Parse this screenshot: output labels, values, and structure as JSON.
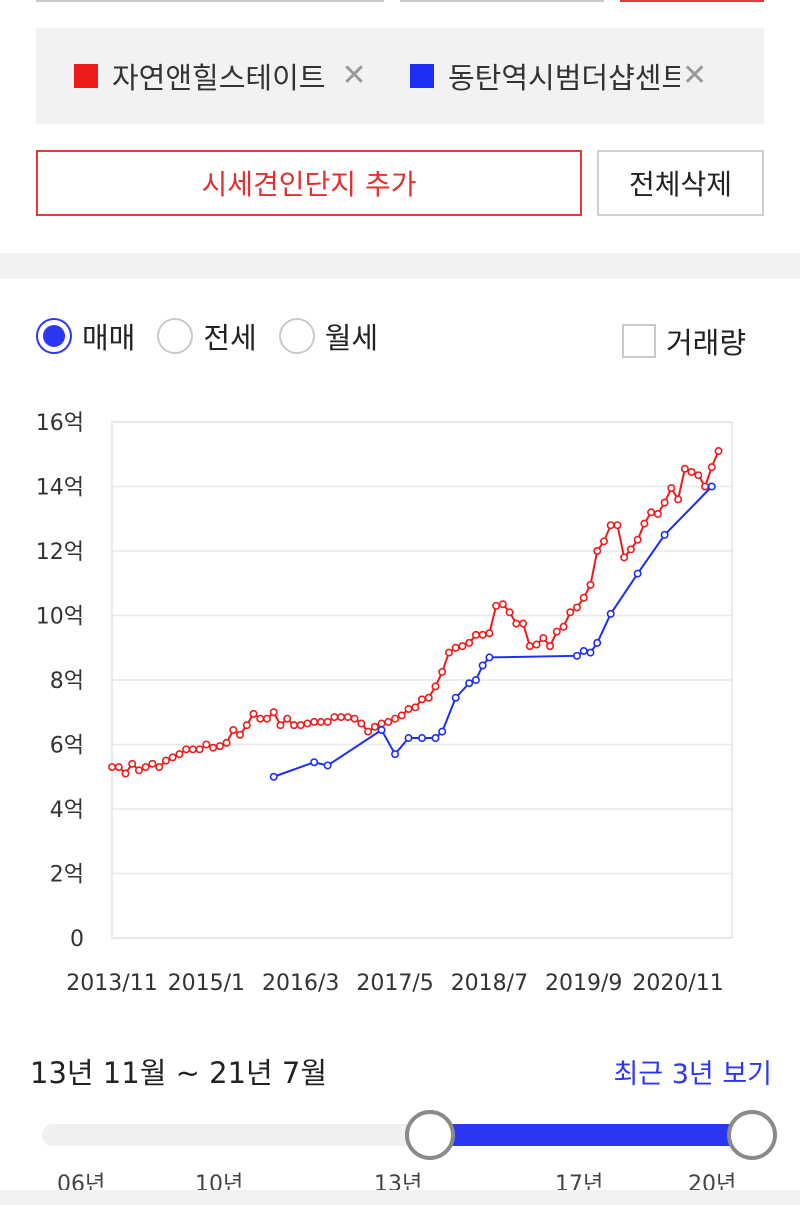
{
  "selected_complexes": [
    {
      "name": "자연앤힐스테이트",
      "color": "#ee1b1b",
      "remove": "✕"
    },
    {
      "name": "동탄역시범더샵센트",
      "color": "#1d2ff5",
      "remove": "✕"
    }
  ],
  "buttons": {
    "add_comparison": "시세견인단지 추가",
    "clear_all": "전체삭제"
  },
  "trade_type": {
    "options": [
      "매매",
      "전세",
      "월세"
    ],
    "selected": "매매"
  },
  "volume_toggle": {
    "label": "거래량",
    "checked": false
  },
  "chart_data": {
    "type": "line",
    "x_ticks": [
      "2013/11",
      "2015/1",
      "2016/3",
      "2017/5",
      "2018/7",
      "2019/9",
      "2020/11"
    ],
    "y_ticks": [
      "0",
      "2억",
      "4억",
      "6억",
      "8억",
      "10억",
      "12억",
      "14억",
      "16억"
    ],
    "ylim": [
      0,
      16
    ],
    "y_unit": "억",
    "grid": true,
    "series": [
      {
        "name": "자연앤힐스테이트",
        "color": "#ee1b1b",
        "points": [
          [
            "2013-11",
            5.3
          ],
          [
            "2013-12",
            5.3
          ],
          [
            "2014-01",
            5.1
          ],
          [
            "2014-02",
            5.4
          ],
          [
            "2014-03",
            5.2
          ],
          [
            "2014-04",
            5.3
          ],
          [
            "2014-05",
            5.4
          ],
          [
            "2014-06",
            5.3
          ],
          [
            "2014-07",
            5.5
          ],
          [
            "2014-08",
            5.6
          ],
          [
            "2014-09",
            5.7
          ],
          [
            "2014-10",
            5.85
          ],
          [
            "2014-11",
            5.85
          ],
          [
            "2014-12",
            5.85
          ],
          [
            "2015-01",
            6.0
          ],
          [
            "2015-02",
            5.9
          ],
          [
            "2015-03",
            5.95
          ],
          [
            "2015-04",
            6.05
          ],
          [
            "2015-05",
            6.45
          ],
          [
            "2015-06",
            6.3
          ],
          [
            "2015-07",
            6.6
          ],
          [
            "2015-08",
            6.95
          ],
          [
            "2015-09",
            6.8
          ],
          [
            "2015-10",
            6.8
          ],
          [
            "2015-11",
            7.0
          ],
          [
            "2015-12",
            6.6
          ],
          [
            "2016-01",
            6.8
          ],
          [
            "2016-02",
            6.6
          ],
          [
            "2016-03",
            6.6
          ],
          [
            "2016-04",
            6.65
          ],
          [
            "2016-05",
            6.7
          ],
          [
            "2016-06",
            6.7
          ],
          [
            "2016-07",
            6.7
          ],
          [
            "2016-08",
            6.85
          ],
          [
            "2016-09",
            6.85
          ],
          [
            "2016-10",
            6.85
          ],
          [
            "2016-11",
            6.8
          ],
          [
            "2016-12",
            6.65
          ],
          [
            "2017-01",
            6.4
          ],
          [
            "2017-02",
            6.55
          ],
          [
            "2017-03",
            6.65
          ],
          [
            "2017-04",
            6.7
          ],
          [
            "2017-05",
            6.8
          ],
          [
            "2017-06",
            6.9
          ],
          [
            "2017-07",
            7.1
          ],
          [
            "2017-08",
            7.15
          ],
          [
            "2017-09",
            7.4
          ],
          [
            "2017-10",
            7.45
          ],
          [
            "2017-11",
            7.8
          ],
          [
            "2017-12",
            8.25
          ],
          [
            "2018-01",
            8.85
          ],
          [
            "2018-02",
            9.0
          ],
          [
            "2018-03",
            9.05
          ],
          [
            "2018-04",
            9.15
          ],
          [
            "2018-05",
            9.4
          ],
          [
            "2018-06",
            9.4
          ],
          [
            "2018-07",
            9.45
          ],
          [
            "2018-08",
            10.3
          ],
          [
            "2018-09",
            10.35
          ],
          [
            "2018-10",
            10.1
          ],
          [
            "2018-11",
            9.75
          ],
          [
            "2018-12",
            9.75
          ],
          [
            "2019-01",
            9.05
          ],
          [
            "2019-02",
            9.1
          ],
          [
            "2019-03",
            9.3
          ],
          [
            "2019-04",
            9.05
          ],
          [
            "2019-05",
            9.5
          ],
          [
            "2019-06",
            9.65
          ],
          [
            "2019-07",
            10.1
          ],
          [
            "2019-08",
            10.25
          ],
          [
            "2019-09",
            10.55
          ],
          [
            "2019-10",
            10.95
          ],
          [
            "2019-11",
            12.0
          ],
          [
            "2019-12",
            12.3
          ],
          [
            "2020-01",
            12.8
          ],
          [
            "2020-02",
            12.8
          ],
          [
            "2020-03",
            11.8
          ],
          [
            "2020-04",
            12.05
          ],
          [
            "2020-05",
            12.35
          ],
          [
            "2020-06",
            12.85
          ],
          [
            "2020-07",
            13.2
          ],
          [
            "2020-08",
            13.15
          ],
          [
            "2020-09",
            13.5
          ],
          [
            "2020-10",
            13.95
          ],
          [
            "2020-11",
            13.6
          ],
          [
            "2020-12",
            14.55
          ],
          [
            "2021-01",
            14.45
          ],
          [
            "2021-02",
            14.35
          ],
          [
            "2021-03",
            14.0
          ],
          [
            "2021-04",
            14.6
          ],
          [
            "2021-05",
            15.1
          ]
        ]
      },
      {
        "name": "동탄역시범더샵센트",
        "color": "#1d2ff5",
        "points": [
          [
            "2015-11",
            5.0
          ],
          [
            "2016-05",
            5.45
          ],
          [
            "2016-07",
            5.35
          ],
          [
            "2017-03",
            6.45
          ],
          [
            "2017-05",
            5.7
          ],
          [
            "2017-07",
            6.2
          ],
          [
            "2017-09",
            6.2
          ],
          [
            "2017-11",
            6.2
          ],
          [
            "2017-12",
            6.4
          ],
          [
            "2018-02",
            7.45
          ],
          [
            "2018-04",
            7.9
          ],
          [
            "2018-05",
            8.0
          ],
          [
            "2018-06",
            8.45
          ],
          [
            "2018-07",
            8.7
          ],
          [
            "2019-08",
            8.75
          ],
          [
            "2019-09",
            8.9
          ],
          [
            "2019-10",
            8.85
          ],
          [
            "2019-11",
            9.15
          ],
          [
            "2020-01",
            10.05
          ],
          [
            "2020-05",
            11.3
          ],
          [
            "2020-09",
            12.5
          ],
          [
            "2021-04",
            14.0
          ]
        ]
      }
    ]
  },
  "period": {
    "label": "13년 11월 ~ 21년 7월",
    "recent_link": "최근 3년 보기",
    "slider_ticks": [
      "06년",
      "10년",
      "13년",
      "17년",
      "20년"
    ],
    "slider_min": 0.539,
    "slider_max": 0.986
  }
}
